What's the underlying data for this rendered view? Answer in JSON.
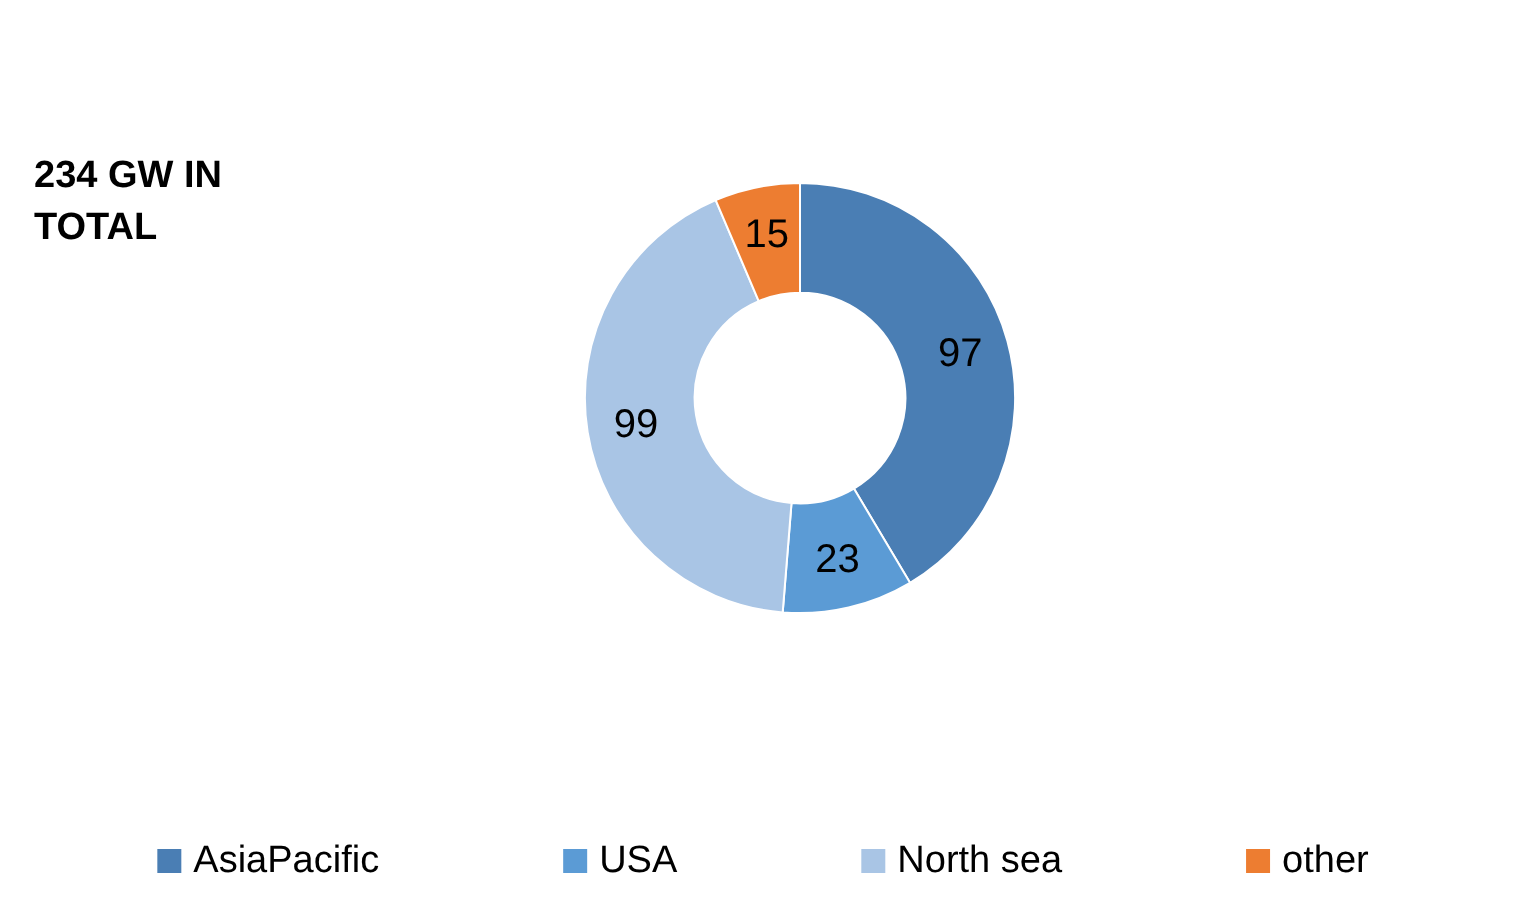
{
  "chart_data": {
    "type": "donut",
    "title": "234 GW IN TOTAL",
    "categories": [
      "AsiaPacific",
      "USA",
      "North sea",
      "other"
    ],
    "values": [
      97,
      23,
      99,
      15
    ],
    "colors": [
      "#4a7eb4",
      "#5b9bd5",
      "#a9c5e5",
      "#ed7d31"
    ],
    "data_labels": true,
    "legend": "bottom"
  }
}
